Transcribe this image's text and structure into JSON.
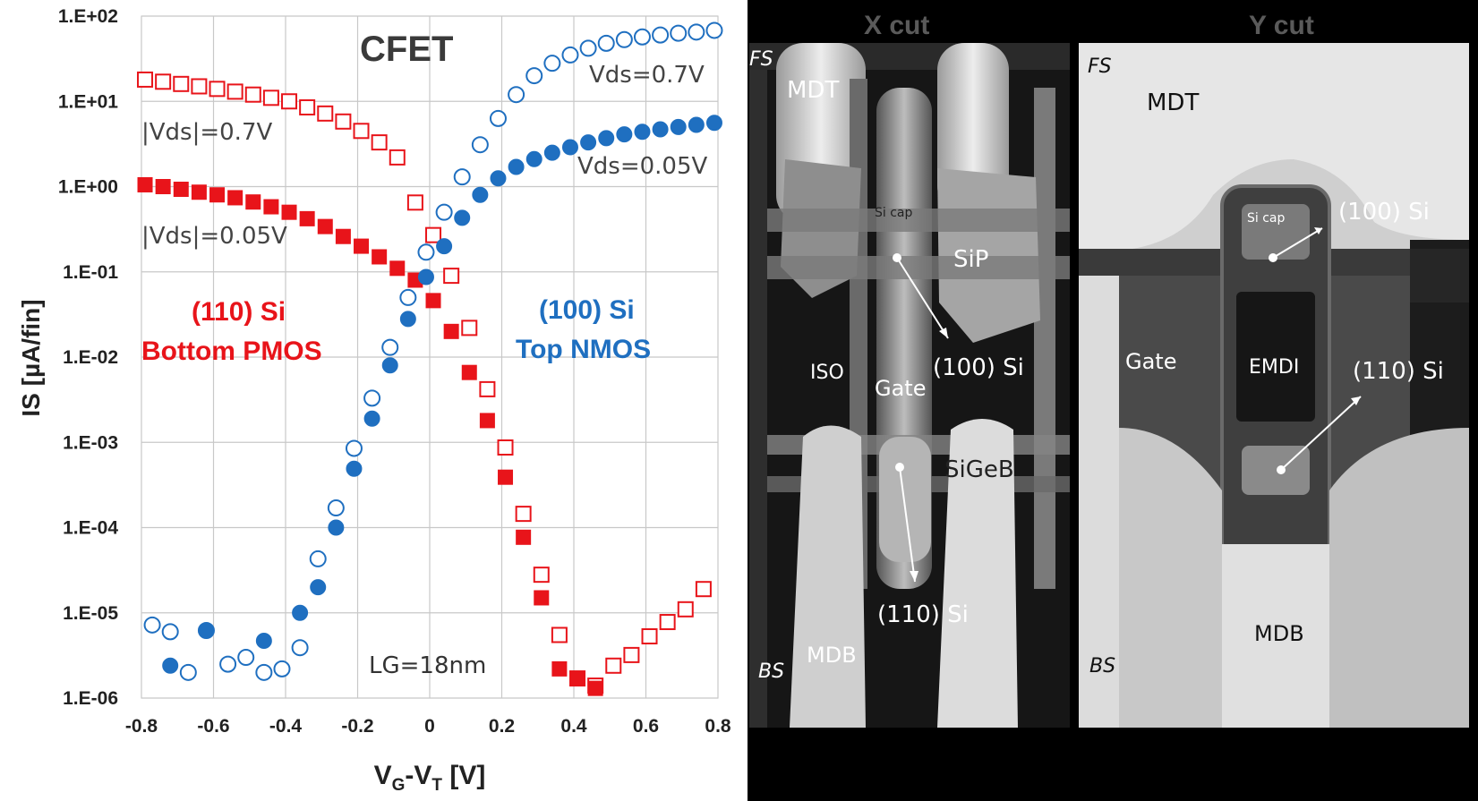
{
  "chart_data": {
    "type": "scatter",
    "title": "CFET",
    "xlabel_main": "V",
    "xlabel_sub1": "G",
    "xlabel_mid": "-V",
    "xlabel_sub2": "T",
    "xlabel_unit": " [V]",
    "ylabel": "IS [µA/fin]",
    "y_scale": "log",
    "xlim": [
      -0.8,
      0.8
    ],
    "ylim": [
      1e-06,
      100
    ],
    "x_ticks": [
      "-0.8",
      "-0.6",
      "-0.4",
      "-0.2",
      "0",
      "0.2",
      "0.4",
      "0.6",
      "0.8"
    ],
    "y_ticks": [
      "1.E+02",
      "1.E+01",
      "1.E+00",
      "1.E-01",
      "1.E-02",
      "1.E-03",
      "1.E-04",
      "1.E-05",
      "1.E-06"
    ],
    "grid": true,
    "colors": {
      "pmos": "#e8141a",
      "nmos": "#1f6fc0"
    },
    "series": [
      {
        "name": "|Vds|=0.7V",
        "marker": "open-square",
        "color": "#e8141a",
        "x": [
          -0.79,
          -0.74,
          -0.69,
          -0.64,
          -0.59,
          -0.54,
          -0.49,
          -0.44,
          -0.39,
          -0.34,
          -0.29,
          -0.24,
          -0.19,
          -0.14,
          -0.09,
          -0.04,
          0.01,
          0.06,
          0.11,
          0.16,
          0.21,
          0.26,
          0.31,
          0.36,
          0.41,
          0.46,
          0.51,
          0.56,
          0.61,
          0.66,
          0.71,
          0.76
        ],
        "y": [
          18,
          17,
          16,
          15,
          14,
          13,
          12,
          11,
          10,
          8.5,
          7.2,
          5.8,
          4.5,
          3.3,
          2.2,
          0.65,
          0.27,
          0.09,
          0.022,
          0.0042,
          0.00087,
          0.000145,
          2.8e-05,
          5.5e-06,
          1.7e-06,
          1.4e-06,
          2.4e-06,
          3.2e-06,
          5.3e-06,
          7.8e-06,
          1.1e-05,
          1.9e-05
        ]
      },
      {
        "name": "|Vds|=0.05V",
        "marker": "filled-square",
        "color": "#e8141a",
        "x": [
          -0.79,
          -0.74,
          -0.69,
          -0.64,
          -0.59,
          -0.54,
          -0.49,
          -0.44,
          -0.39,
          -0.34,
          -0.29,
          -0.24,
          -0.19,
          -0.14,
          -0.09,
          -0.04,
          0.01,
          0.06,
          0.11,
          0.16,
          0.21,
          0.26,
          0.31,
          0.36,
          0.41,
          0.46
        ],
        "y": [
          1.05,
          1.0,
          0.93,
          0.86,
          0.8,
          0.74,
          0.66,
          0.58,
          0.5,
          0.42,
          0.34,
          0.26,
          0.2,
          0.15,
          0.11,
          0.08,
          0.046,
          0.02,
          0.0066,
          0.0018,
          0.00039,
          7.7e-05,
          1.5e-05,
          2.2e-06,
          1.7e-06,
          1.3e-06
        ]
      },
      {
        "name": "Vds=0.7V",
        "marker": "open-circle",
        "color": "#1f6fc0",
        "x": [
          -0.77,
          -0.72,
          -0.67,
          -0.62,
          -0.56,
          -0.51,
          -0.46,
          -0.41,
          -0.36,
          -0.31,
          -0.26,
          -0.21,
          -0.16,
          -0.11,
          -0.06,
          -0.01,
          0.04,
          0.09,
          0.14,
          0.19,
          0.24,
          0.29,
          0.34,
          0.39,
          0.44,
          0.49,
          0.54,
          0.59,
          0.64,
          0.69,
          0.74,
          0.79
        ],
        "y": [
          7.2e-06,
          6e-06,
          2e-06,
          6.2e-06,
          2.5e-06,
          3e-06,
          2e-06,
          2.2e-06,
          3.9e-06,
          4.3e-05,
          0.00017,
          0.00085,
          0.0033,
          0.013,
          0.05,
          0.17,
          0.5,
          1.3,
          3.1,
          6.3,
          12,
          20,
          28,
          35,
          42,
          48,
          53,
          57,
          60,
          63,
          65,
          68
        ]
      },
      {
        "name": "Vds=0.05V",
        "marker": "filled-circle",
        "color": "#1f6fc0",
        "x": [
          -0.72,
          -0.62,
          -0.46,
          -0.36,
          -0.31,
          -0.26,
          -0.21,
          -0.16,
          -0.11,
          -0.06,
          -0.01,
          0.04,
          0.09,
          0.14,
          0.19,
          0.24,
          0.29,
          0.34,
          0.39,
          0.44,
          0.49,
          0.54,
          0.59,
          0.64,
          0.69,
          0.74,
          0.79
        ],
        "y": [
          2.4e-06,
          6.2e-06,
          4.7e-06,
          1e-05,
          2e-05,
          0.0001,
          0.00049,
          0.0019,
          0.008,
          0.028,
          0.087,
          0.2,
          0.43,
          0.8,
          1.25,
          1.7,
          2.1,
          2.5,
          2.9,
          3.3,
          3.7,
          4.1,
          4.4,
          4.7,
          5.0,
          5.3,
          5.6
        ]
      }
    ],
    "annotations": {
      "vds07_pmos": "|Vds|=0.7V",
      "vds005_pmos": "|Vds|=0.05V",
      "vds07_nmos": "Vds=0.7V",
      "vds005_nmos": "Vds=0.05V",
      "pmos_line1": "(110) Si",
      "pmos_line2": "Bottom PMOS",
      "nmos_line1": "(100) Si",
      "nmos_line2": "Top NMOS",
      "lg": "LG=18nm"
    }
  },
  "tem": {
    "xcut": {
      "title": "X cut",
      "fs": "FS",
      "bs": "BS",
      "mdt": "MDT",
      "si_cap": "Si cap",
      "sip": "SiP",
      "iso": "ISO",
      "gate": "Gate",
      "si100": "(100) Si",
      "sigeb": "SiGeB",
      "si110": "(110) Si",
      "mdb": "MDB"
    },
    "ycut": {
      "title": "Y cut",
      "fs": "FS",
      "bs": "BS",
      "mdt": "MDT",
      "si_cap": "Si cap",
      "si100": "(100) Si",
      "gate": "Gate",
      "emdi": "EMDI",
      "si110": "(110) Si",
      "mdb": "MDB"
    }
  }
}
